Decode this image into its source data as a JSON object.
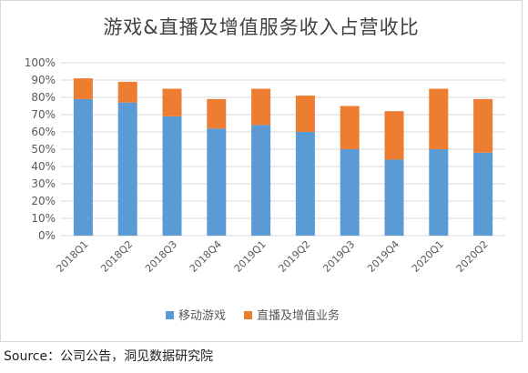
{
  "source_note": "Source：公司公告，洞见数据研究院",
  "colors": {
    "series_blue": "#5b9bd5",
    "series_orange": "#ed7d31",
    "grid": "#d9d9d9",
    "tick_text": "#595959"
  },
  "chart_data": {
    "type": "bar",
    "stacked": true,
    "title": "游戏&直播及增值服务收入占营收比",
    "categories": [
      "2018Q1",
      "2018Q2",
      "2018Q3",
      "2018Q4",
      "2019Q1",
      "2019Q2",
      "2019Q3",
      "2019Q4",
      "2020Q1",
      "2020Q2"
    ],
    "series": [
      {
        "name": "移动游戏",
        "color": "#5b9bd5",
        "values": [
          79,
          77,
          69,
          62,
          64,
          60,
          50,
          44,
          50,
          48
        ]
      },
      {
        "name": "直播及增值业务",
        "color": "#ed7d31",
        "values": [
          12,
          12,
          16,
          17,
          21,
          21,
          25,
          28,
          35,
          31
        ]
      }
    ],
    "ylim": [
      0,
      100
    ],
    "yticks": [
      "0%",
      "10%",
      "20%",
      "30%",
      "40%",
      "50%",
      "60%",
      "70%",
      "80%",
      "90%",
      "100%"
    ],
    "grid": true,
    "legend_position": "bottom"
  }
}
